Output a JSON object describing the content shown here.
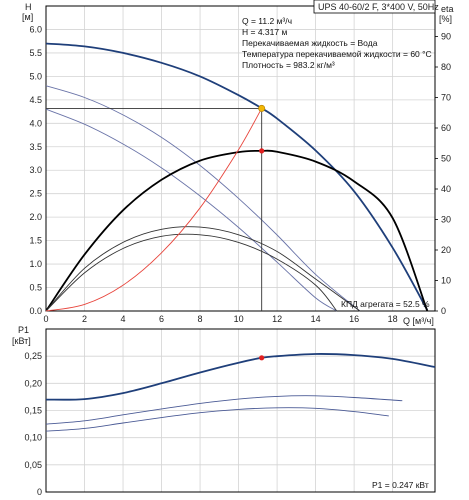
{
  "chart_data": [
    {
      "type": "line",
      "title": "UPS 40-60/2 F, 3*400 V, 50Hz",
      "ylabel": "H",
      "ylabel_unit": "[м]",
      "y2label": "eta",
      "y2label_unit": "[%]",
      "xlabel": "Q [м³/ч]",
      "xlim": [
        0,
        20.2
      ],
      "ylim": [
        0,
        6.5
      ],
      "y2lim": [
        0,
        100
      ],
      "x_ticks": [
        "0",
        "2",
        "4",
        "6",
        "8",
        "10",
        "12",
        "14",
        "16",
        "18"
      ],
      "y_ticks": [
        "0.0",
        "0.5",
        "1.0",
        "1.5",
        "2.0",
        "2.5",
        "3.0",
        "3.5",
        "4.0",
        "4.5",
        "5.0",
        "5.5",
        "6.0"
      ],
      "y2_ticks": [
        "0",
        "10",
        "20",
        "30",
        "40",
        "50",
        "60",
        "70",
        "80",
        "90"
      ],
      "grid": true,
      "operating_point": {
        "q": 11.2,
        "h": 4.317,
        "eta": 52.5
      },
      "info_lines": [
        "Q = 11.2 м³/ч",
        "H = 4.317 м",
        "Перекачиваемая жидкость = Вода",
        "Температура перекачиваемой жидкости = 60 °C",
        "Плотность = 983.2 кг/м³"
      ],
      "efficiency_label": "КПД агрегата = 52.5 %",
      "series": [
        {
          "role": "head-speed-3",
          "color": "#1f3f7a",
          "x": [
            0,
            2,
            4,
            6,
            8,
            10,
            11.2,
            12,
            14,
            16,
            18,
            19.8
          ],
          "y": [
            5.7,
            5.64,
            5.5,
            5.29,
            5.0,
            4.6,
            4.32,
            4.1,
            3.42,
            2.55,
            1.35,
            0.02
          ]
        },
        {
          "role": "head-speed-2",
          "color": "#6a74a8",
          "x": [
            0,
            2,
            4,
            6,
            8,
            10,
            12,
            14,
            16.3
          ],
          "y": [
            4.8,
            4.55,
            4.18,
            3.7,
            3.1,
            2.4,
            1.62,
            0.78,
            0.0
          ]
        },
        {
          "role": "head-speed-1",
          "color": "#6a74a8",
          "x": [
            0,
            2,
            4,
            6,
            8,
            10,
            12,
            14,
            15.1
          ],
          "y": [
            4.3,
            3.98,
            3.56,
            3.05,
            2.45,
            1.78,
            1.04,
            0.28,
            0.0
          ]
        },
        {
          "role": "efficiency-speed-3",
          "color": "#000000",
          "axis": "y2",
          "x": [
            0,
            2,
            4,
            6,
            8,
            10,
            11.2,
            12,
            14,
            16,
            18,
            19.8
          ],
          "y": [
            0,
            18.5,
            33.0,
            43.0,
            49.3,
            52.1,
            52.5,
            52.2,
            49.0,
            42.5,
            30.5,
            0
          ]
        },
        {
          "role": "efficiency-speed-2",
          "color": "#333333",
          "axis": "y2",
          "x": [
            0,
            2,
            4,
            6,
            8,
            10,
            12,
            14,
            16.3
          ],
          "y": [
            0,
            14.0,
            22.5,
            26.8,
            27.5,
            25.0,
            19.5,
            10.5,
            0
          ]
        },
        {
          "role": "efficiency-speed-1",
          "color": "#333333",
          "axis": "y2",
          "x": [
            0,
            2,
            4,
            6,
            8,
            10,
            12,
            14,
            15.1
          ],
          "y": [
            0,
            12.5,
            20.5,
            24.5,
            25.0,
            22.5,
            17.0,
            8.5,
            0
          ]
        },
        {
          "role": "system-curve",
          "color": "#e8453c",
          "x": [
            0,
            2,
            4,
            6,
            8,
            10,
            11.2
          ],
          "y": [
            0.0,
            0.14,
            0.55,
            1.24,
            2.2,
            3.44,
            4.32
          ]
        }
      ]
    },
    {
      "type": "line",
      "ylabel": "P1",
      "ylabel_unit": "[кВт]",
      "ylim": [
        0,
        0.3
      ],
      "y_ticks": [
        "0",
        "0,05",
        "0,10",
        "0,15",
        "0,20",
        "0,25"
      ],
      "power_label": "P1 = 0.247 кВт",
      "operating_point": {
        "q": 11.2,
        "p1": 0.247
      },
      "series": [
        {
          "role": "power-speed-3",
          "color": "#1f3f7a",
          "x": [
            0,
            2,
            4,
            6,
            8,
            10,
            11.2,
            12,
            14,
            16,
            18,
            20.2
          ],
          "y": [
            0.17,
            0.171,
            0.182,
            0.2,
            0.22,
            0.238,
            0.247,
            0.25,
            0.254,
            0.252,
            0.245,
            0.23
          ]
        },
        {
          "role": "power-speed-2",
          "color": "#4a5a95",
          "x": [
            0,
            2,
            4,
            6,
            8,
            10,
            12,
            14,
            16,
            18.5
          ],
          "y": [
            0.125,
            0.131,
            0.142,
            0.153,
            0.163,
            0.171,
            0.176,
            0.177,
            0.174,
            0.168
          ]
        },
        {
          "role": "power-speed-1",
          "color": "#4a5a95",
          "x": [
            0,
            2,
            4,
            6,
            8,
            10,
            12,
            14,
            16,
            17.8
          ],
          "y": [
            0.112,
            0.117,
            0.127,
            0.137,
            0.146,
            0.152,
            0.155,
            0.154,
            0.148,
            0.14
          ]
        }
      ]
    }
  ]
}
